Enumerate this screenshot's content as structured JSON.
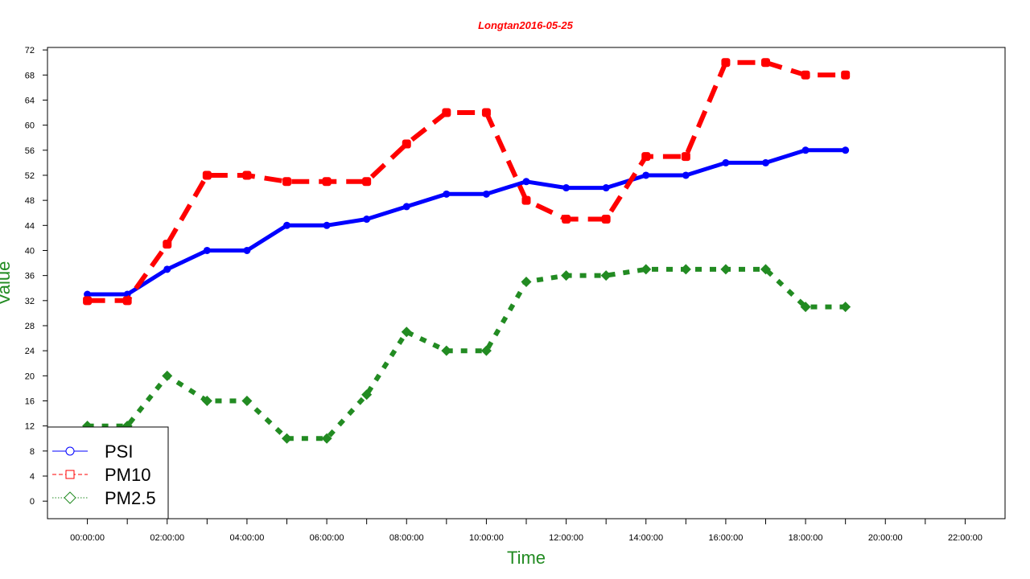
{
  "chart_data": {
    "type": "line",
    "title": "Longtan2016-05-25",
    "xlabel": "Time",
    "ylabel": "Value",
    "x_tick_labels": [
      "00:00:00",
      "02:00:00",
      "04:00:00",
      "06:00:00",
      "08:00:00",
      "10:00:00",
      "12:00:00",
      "14:00:00",
      "16:00:00",
      "18:00:00",
      "20:00:00",
      "22:00:00"
    ],
    "y_ticks": [
      0,
      4,
      8,
      12,
      16,
      20,
      24,
      28,
      32,
      36,
      40,
      44,
      48,
      52,
      56,
      60,
      64,
      68,
      72
    ],
    "xlim": [
      -1,
      23
    ],
    "ylim": [
      -2.8,
      72.4
    ],
    "x_hours": [
      0,
      1,
      2,
      3,
      4,
      5,
      6,
      7,
      8,
      9,
      10,
      11,
      12,
      13,
      14,
      15,
      16,
      17,
      18,
      19
    ],
    "legend_position": "bottom-left",
    "grid": false,
    "series": [
      {
        "name": "PSI",
        "color": "#0000ff",
        "line_style": "solid",
        "marker": "circle",
        "values": [
          33,
          33,
          37,
          40,
          40,
          44,
          44,
          45,
          47,
          49,
          49,
          51,
          50,
          50,
          52,
          52,
          54,
          54,
          56,
          56
        ]
      },
      {
        "name": "PM10",
        "color": "#ff0000",
        "line_style": "dashed",
        "marker": "square",
        "values": [
          32,
          32,
          41,
          52,
          52,
          51,
          51,
          51,
          57,
          62,
          62,
          48,
          45,
          45,
          55,
          55,
          70,
          70,
          68,
          68
        ]
      },
      {
        "name": "PM2.5",
        "color": "#228b22",
        "line_style": "dotted",
        "marker": "diamond",
        "values": [
          12,
          12,
          20,
          16,
          16,
          10,
          10,
          17,
          27,
          24,
          24,
          35,
          36,
          36,
          37,
          37,
          37,
          37,
          31,
          31
        ]
      }
    ]
  }
}
